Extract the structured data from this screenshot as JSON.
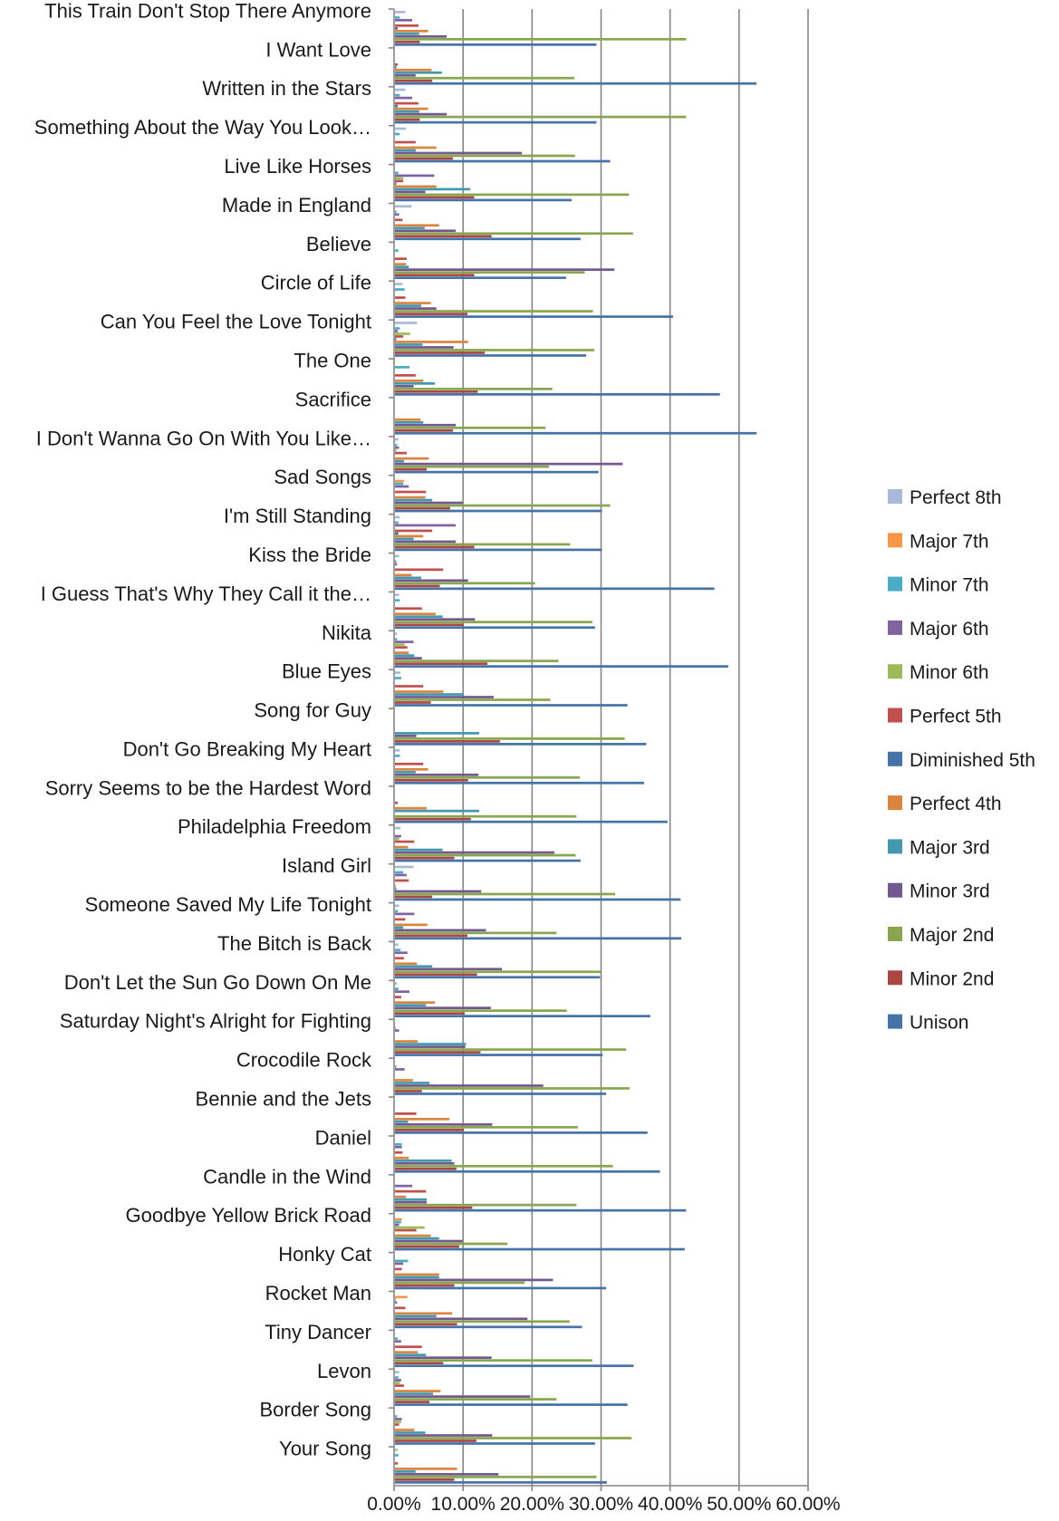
{
  "chart_data": {
    "type": "bar",
    "orientation": "horizontal",
    "categories": [
      "This Train Don't Stop There Anymore",
      "I Want Love",
      "Written in the Stars",
      "Something About the Way You Look…",
      "Live Like Horses",
      "Made in England",
      "Believe",
      "Circle of Life",
      "Can You Feel the Love Tonight",
      "The One",
      "Sacrifice",
      "I Don't Wanna Go On With You Like…",
      "Sad Songs",
      "I'm Still Standing",
      "Kiss the Bride",
      "I Guess That's Why They Call it the…",
      "Nikita",
      "Blue Eyes",
      "Song for Guy",
      "Don't Go Breaking My Heart",
      "Sorry Seems to be the Hardest Word",
      "Philadelphia Freedom",
      "Island Girl",
      "Someone Saved My Life Tonight",
      "The Bitch is Back",
      "Don't Let the Sun Go Down On Me",
      "Saturday Night's Alright for Fighting",
      "Crocodile Rock",
      "Bennie and the Jets",
      "Daniel",
      "Candle in the Wind",
      "Goodbye Yellow Brick Road",
      "Honky Cat",
      "Rocket Man",
      "Tiny Dancer",
      "Levon",
      "Border Song",
      "Your Song"
    ],
    "xlim": [
      0,
      60
    ],
    "ticks": [
      "0.00%",
      "10.00%",
      "20.00%",
      "30.00%",
      "40.00%",
      "50.00%",
      "60.00%"
    ],
    "legend_position": "right",
    "grid": true,
    "series": [
      {
        "name": "Unison",
        "color": "#4572A7",
        "values": [
          29.2,
          52.4,
          29.2,
          31.2,
          25.6,
          26.9,
          24.8,
          40.3,
          27.7,
          47.1,
          52.4,
          29.5,
          30.0,
          30.0,
          46.3,
          29.0,
          48.3,
          33.7,
          36.4,
          36.1,
          39.5,
          26.9,
          41.4,
          41.5,
          29.7,
          37.0,
          30.1,
          30.6,
          36.6,
          38.4,
          42.2,
          42.0,
          30.6,
          27.1,
          34.6,
          33.7,
          29.0,
          30.7
        ]
      },
      {
        "name": "Minor 2nd",
        "color": "#AA4643",
        "values": [
          3.6,
          5.4,
          3.6,
          8.4,
          11.5,
          14.0,
          11.5,
          10.5,
          13.0,
          12.0,
          8.4,
          4.6,
          8.0,
          11.5,
          6.5,
          10.0,
          13.4,
          5.2,
          15.2,
          10.6,
          11.0,
          8.6,
          5.4,
          10.5,
          11.9,
          10.1,
          12.4,
          3.9,
          10.0,
          8.9,
          11.2,
          9.3,
          8.6,
          9.0,
          7.0,
          5.0,
          11.8,
          8.6
        ]
      },
      {
        "name": "Major 2nd",
        "color": "#89A54E",
        "values": [
          42.2,
          26.0,
          42.2,
          26.1,
          33.9,
          34.5,
          27.5,
          28.7,
          28.9,
          22.8,
          21.8,
          22.3,
          31.2,
          25.4,
          20.3,
          28.6,
          23.7,
          22.5,
          33.3,
          26.8,
          26.3,
          26.2,
          31.9,
          23.4,
          29.8,
          24.9,
          33.5,
          34.0,
          26.5,
          31.6,
          26.3,
          16.3,
          18.8,
          25.3,
          28.6,
          23.4,
          34.3,
          29.2
        ]
      },
      {
        "name": "Minor 3rd",
        "color": "#71588F",
        "values": [
          7.5,
          3.0,
          7.5,
          18.4,
          4.4,
          8.8,
          31.8,
          6.0,
          8.5,
          2.7,
          8.8,
          33.0,
          9.8,
          8.8,
          10.6,
          11.6,
          3.9,
          14.3,
          3.1,
          12.1,
          0,
          23.1,
          12.5,
          13.2,
          15.5,
          13.9,
          10.2,
          21.5,
          14.1,
          8.6,
          4.6,
          9.8,
          22.9,
          19.2,
          14.0,
          19.6,
          14.1,
          15.0
        ]
      },
      {
        "name": "Major 3rd",
        "color": "#4198AF",
        "values": [
          3.5,
          6.8,
          3.5,
          3.0,
          10.9,
          4.3,
          2.0,
          3.8,
          4.0,
          5.8,
          4.1,
          1.3,
          5.4,
          2.7,
          3.8,
          6.9,
          2.8,
          10.0,
          12.2,
          3.0,
          12.2,
          6.9,
          0.2,
          1.2,
          5.4,
          4.5,
          10.3,
          5.0,
          1.9,
          8.2,
          4.6,
          6.4,
          6.4,
          6.0,
          4.5,
          5.5,
          4.4,
          3.0
        ]
      },
      {
        "name": "Perfect 4th",
        "color": "#DB843D",
        "values": [
          4.8,
          5.3,
          4.8,
          6.0,
          6.0,
          6.4,
          1.6,
          5.2,
          10.6,
          4.1,
          3.7,
          4.9,
          4.4,
          4.1,
          2.4,
          5.9,
          2.0,
          7.0,
          0,
          4.8,
          4.6,
          1.9,
          0.1,
          4.7,
          3.2,
          5.8,
          3.3,
          2.6,
          7.9,
          2.0,
          1.6,
          5.2,
          6.4,
          8.3,
          3.3,
          6.6,
          2.8,
          9.0
        ]
      },
      {
        "name": "Diminished 5th",
        "color": "#4572A7",
        "values": [
          0.4,
          0.2,
          0.4,
          0,
          0.2,
          0,
          0,
          0,
          0.2,
          0,
          0,
          0,
          0,
          0.5,
          0,
          0,
          0,
          0,
          0,
          0,
          0,
          0,
          0,
          0,
          0,
          0,
          0,
          0,
          0,
          0,
          0,
          0,
          0,
          0,
          0,
          0,
          0,
          0
        ]
      },
      {
        "name": "Perfect 5th",
        "color": "#C0504D",
        "values": [
          3.4,
          0.4,
          3.4,
          3.0,
          1.2,
          1.1,
          1.7,
          1.5,
          1.2,
          3.0,
          0,
          1.7,
          4.5,
          5.4,
          7.0,
          3.9,
          1.8,
          4.1,
          0,
          4.1,
          0.4,
          2.8,
          2.0,
          1.5,
          1.3,
          0.9,
          0,
          0,
          3.1,
          1.1,
          4.5,
          3.1,
          1.0,
          1.5,
          3.9,
          1.3,
          0.6,
          0.4
        ]
      },
      {
        "name": "Minor 6th",
        "color": "#9BBB59",
        "values": [
          0,
          0,
          0,
          0,
          1.2,
          0,
          0,
          0,
          2.2,
          0,
          0,
          0.2,
          0,
          0,
          0,
          0,
          1.4,
          0,
          0,
          0,
          0,
          0.6,
          0,
          0,
          0,
          0,
          0,
          0,
          0,
          0,
          0,
          4.3,
          0,
          0,
          0,
          0.7,
          0.9,
          0
        ]
      },
      {
        "name": "Major 6th",
        "color": "#8064A2",
        "values": [
          2.5,
          0,
          2.5,
          0,
          5.7,
          0.6,
          0,
          0,
          0.4,
          0,
          0,
          0.6,
          2.0,
          8.8,
          0.3,
          0,
          2.7,
          0,
          0,
          0,
          0,
          0.9,
          1.7,
          2.8,
          1.8,
          2.1,
          0.6,
          1.4,
          0,
          1.0,
          2.5,
          0.6,
          1.2,
          0.3,
          0.9,
          0.9,
          1.0,
          0
        ]
      },
      {
        "name": "Minor 7th",
        "color": "#4BACC6",
        "values": [
          0.7,
          0,
          0.7,
          0.7,
          0.5,
          0.2,
          0.5,
          1.4,
          0.7,
          2.1,
          0,
          0.3,
          1.2,
          0.5,
          0.2,
          0.7,
          0.3,
          0.9,
          0,
          0.7,
          0,
          0,
          1.2,
          0.4,
          0.8,
          0.5,
          0.1,
          0.2,
          0,
          1.0,
          0,
          0.9,
          1.9,
          0.1,
          0.4,
          0.5,
          0.3,
          0.5
        ]
      },
      {
        "name": "Major 7th",
        "color": "#F79646",
        "values": [
          0,
          0,
          0,
          0,
          0,
          0,
          0,
          0,
          0,
          0,
          0,
          0,
          1.3,
          0,
          0,
          0,
          0,
          0,
          0,
          0,
          0,
          0,
          0,
          0,
          0,
          0,
          0,
          0,
          0,
          0,
          0,
          1.0,
          0,
          1.8,
          0,
          0,
          0,
          0
        ]
      },
      {
        "name": "Perfect 8th",
        "color": "#A9B9D9",
        "values": [
          1.5,
          0,
          1.5,
          1.6,
          0,
          2.4,
          0,
          1.1,
          3.2,
          0,
          0,
          0.5,
          0,
          0.7,
          0.6,
          0.6,
          0.3,
          0.8,
          0,
          0.7,
          0,
          0.8,
          2.7,
          0.6,
          0.5,
          0.3,
          0,
          0,
          0,
          0,
          0,
          0,
          0,
          0,
          0,
          0.6,
          0,
          0.4
        ]
      }
    ]
  }
}
